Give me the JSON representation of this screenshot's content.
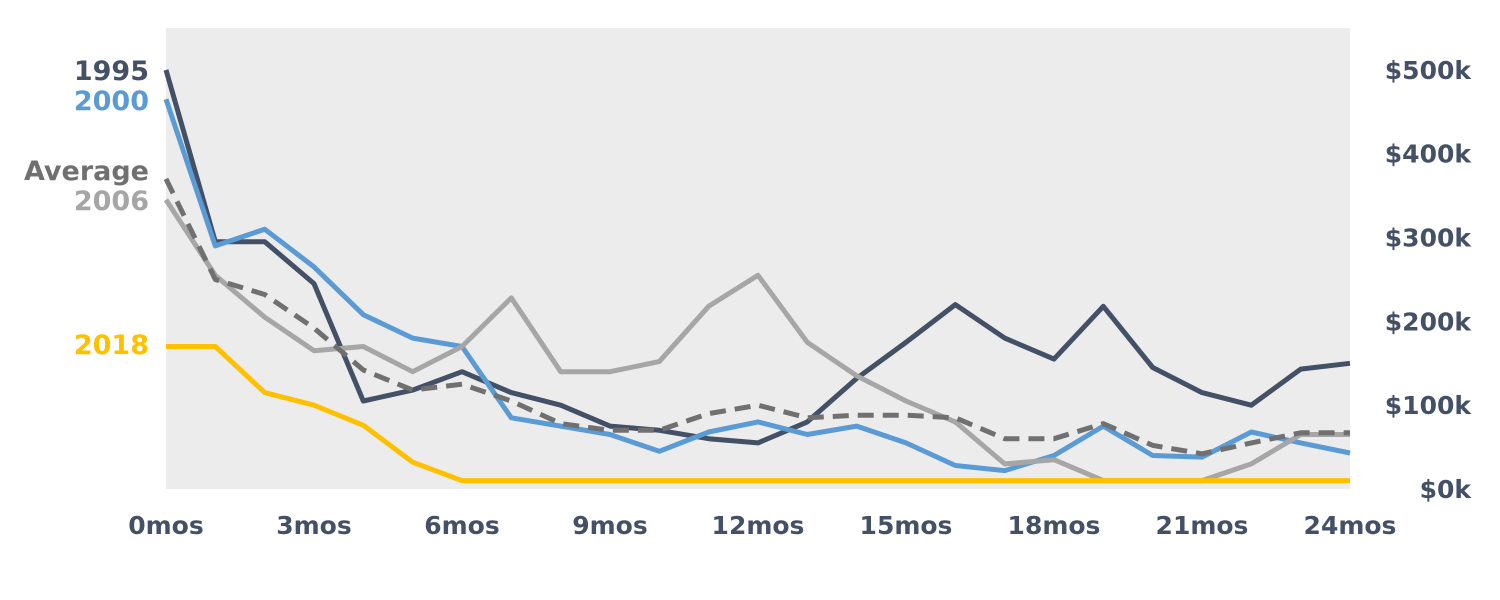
{
  "chart_data": {
    "type": "line",
    "x": [
      0,
      1,
      2,
      3,
      4,
      5,
      6,
      7,
      8,
      9,
      10,
      11,
      12,
      13,
      14,
      15,
      16,
      17,
      18,
      19,
      20,
      21,
      22,
      23,
      24
    ],
    "xticks": [
      "0mos",
      "3mos",
      "6mos",
      "9mos",
      "12mos",
      "15mos",
      "18mos",
      "21mos",
      "24mos"
    ],
    "xtick_values": [
      0,
      3,
      6,
      9,
      12,
      15,
      18,
      21,
      24
    ],
    "xlim": [
      0,
      24
    ],
    "yticks": [
      "$0k",
      "$100k",
      "$200k",
      "$300k",
      "$400k",
      "$500k"
    ],
    "ytick_values": [
      0,
      100,
      200,
      300,
      400,
      500
    ],
    "ylim": [
      0,
      550
    ],
    "y_axis_side": "right",
    "legend_placement": "left",
    "grid": false,
    "background": "#ececec",
    "series": [
      {
        "name": "1995",
        "color": "#445066",
        "dash": false,
        "values": [
          500,
          295,
          295,
          245,
          105,
          118,
          140,
          115,
          100,
          75,
          70,
          60,
          55,
          80,
          132,
          175,
          220,
          180,
          155,
          218,
          145,
          115,
          100,
          143,
          150
        ]
      },
      {
        "name": "2000",
        "color": "#5b9bd5",
        "dash": false,
        "values": [
          465,
          290,
          310,
          265,
          208,
          180,
          170,
          85,
          75,
          65,
          45,
          68,
          80,
          65,
          75,
          55,
          28,
          22,
          40,
          75,
          40,
          38,
          68,
          55,
          43
        ]
      },
      {
        "name": "2006",
        "color": "#a6a6a6",
        "dash": false,
        "values": [
          345,
          255,
          205,
          165,
          170,
          140,
          170,
          228,
          140,
          140,
          152,
          218,
          255,
          175,
          135,
          105,
          80,
          30,
          35,
          10,
          10,
          10,
          30,
          65,
          65
        ]
      },
      {
        "name": "Average",
        "color": "#707070",
        "dash": true,
        "values": [
          370,
          250,
          232,
          192,
          142,
          118,
          125,
          105,
          78,
          70,
          70,
          90,
          100,
          85,
          88,
          88,
          85,
          60,
          60,
          78,
          52,
          42,
          55,
          67,
          67
        ]
      },
      {
        "name": "2018",
        "color": "#ffc000",
        "dash": false,
        "values": [
          170,
          170,
          115,
          100,
          76,
          32,
          10,
          10,
          10,
          10,
          10,
          10,
          10,
          10,
          10,
          10,
          10,
          10,
          10,
          10,
          10,
          10,
          10,
          10,
          10
        ]
      }
    ]
  }
}
